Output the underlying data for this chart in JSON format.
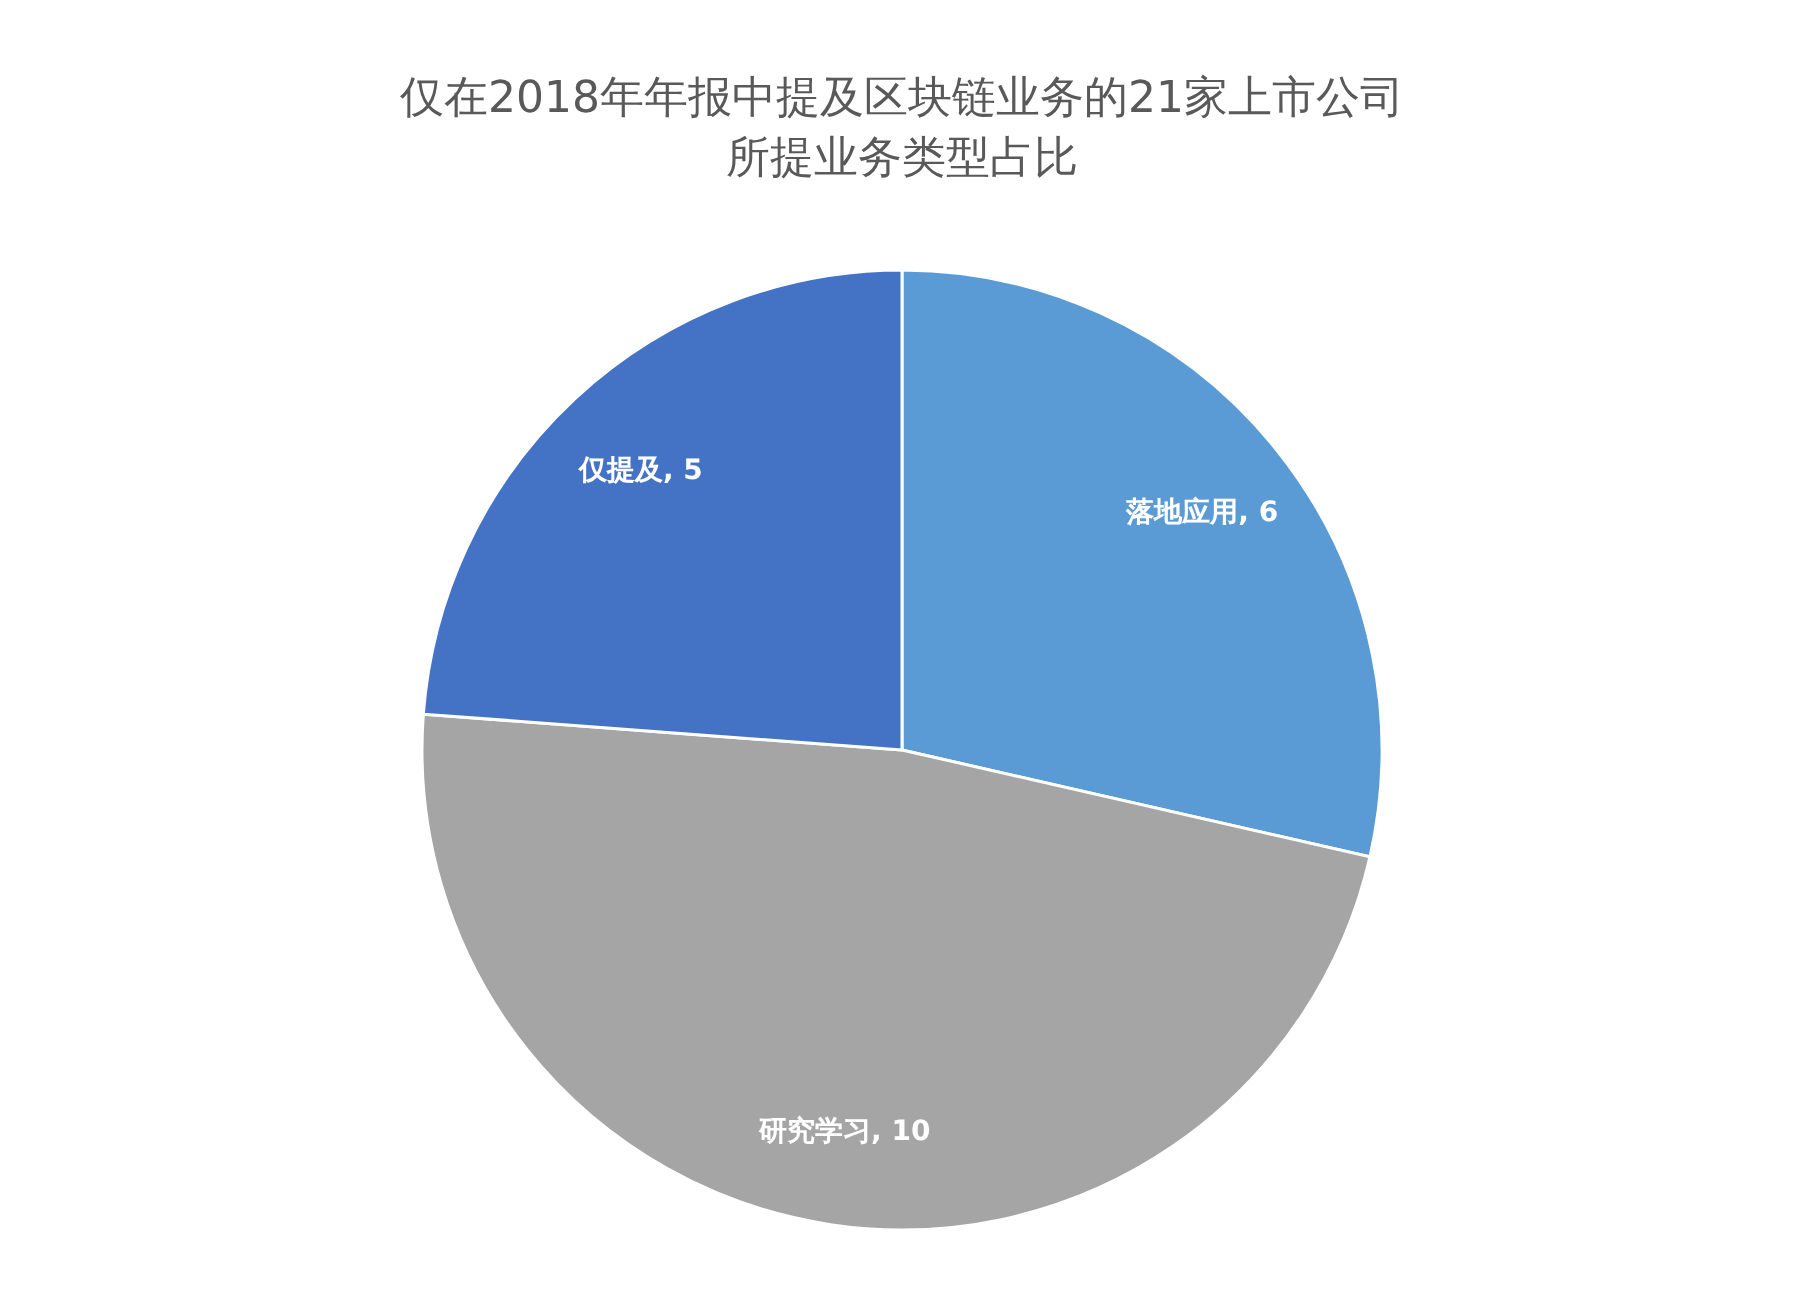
{
  "chart_data": {
    "type": "pie",
    "title": "仅在2018年年报中提及区块链业务的21家上市公司所提业务类型占比",
    "categories": [
      "落地应用",
      "研究学习",
      "仅提及"
    ],
    "values": [
      6,
      10,
      5
    ],
    "value_labels": [
      ", 6",
      ", 10",
      ", 5"
    ],
    "colors": [
      "#5b9bd5",
      "#a5a5a5",
      "#4472c4"
    ]
  }
}
